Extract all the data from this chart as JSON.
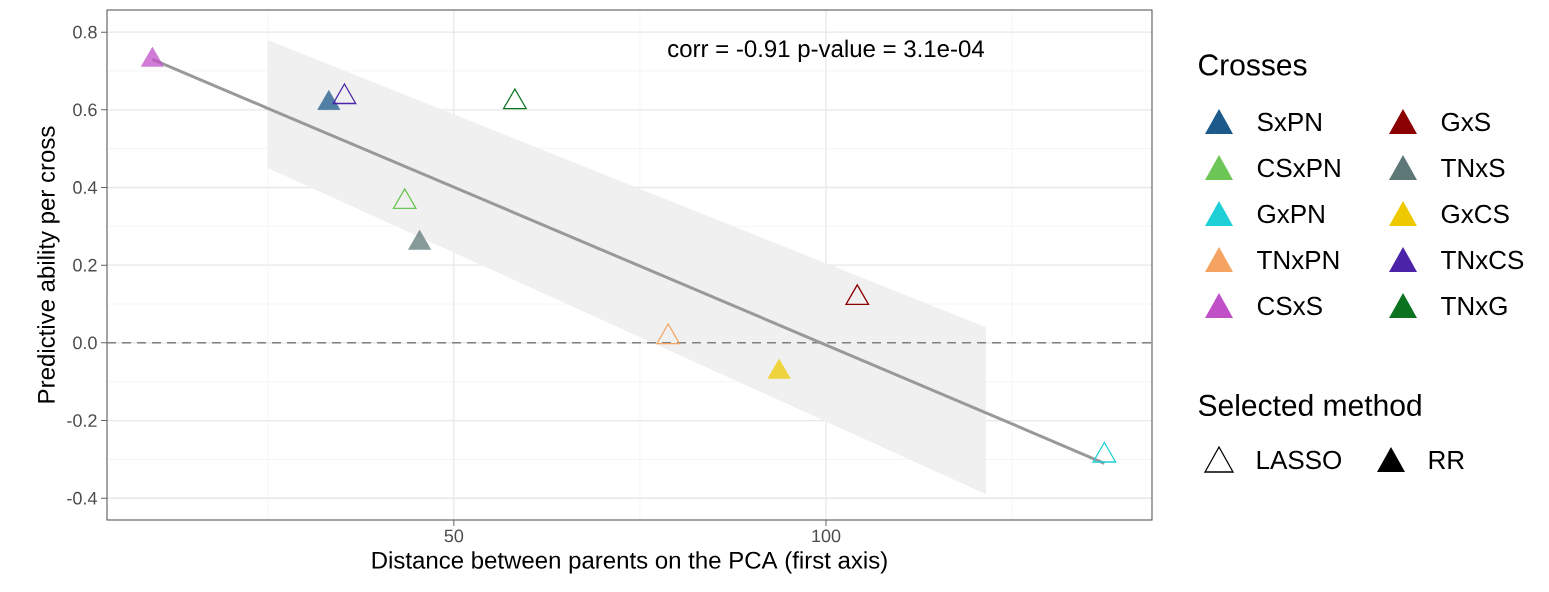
{
  "chart_data": {
    "type": "scatter",
    "xlabel": "Distance between parents on the PCA (first axis)",
    "ylabel": "Predictive ability per cross",
    "legend_title": "Crosses",
    "legend": "right",
    "grid": true,
    "xlim": [
      3.4,
      143.8
    ],
    "ylim": [
      -0.456,
      0.857
    ],
    "xticks": [
      50,
      100
    ],
    "yticks": [
      -0.4,
      -0.2,
      {
        "value": 0,
        "label": "0.0"
      },
      0.2,
      0.4,
      0.6,
      0.8
    ],
    "annotations": [
      "corr = -0.91 p-value =  3.1e-04",
      "Selected method",
      "LASSO",
      "RR"
    ],
    "ref_lines": [
      {
        "axis": "y",
        "value": 0,
        "color": "#808080",
        "line_style": "dashed"
      }
    ],
    "series": [
      {
        "type": "line",
        "color": "#999999",
        "marker": "none",
        "x": [
          9.5,
          25,
          121.5,
          137.4
        ],
        "values": [
          0.73,
          0.604,
          -0.18,
          -0.31
        ],
        "lower": [
          null,
          0.45,
          -0.39,
          null
        ],
        "upper": [
          null,
          0.78,
          0.04,
          null
        ]
      },
      {
        "name": "SxPN",
        "color": "#1b5a8a",
        "marker": "triangle",
        "x": [
          33.2
        ],
        "values": [
          0.617
        ]
      },
      {
        "name": "CSxPN",
        "color": "#6cc655",
        "marker": "triangle-open",
        "x": [
          43.4
        ],
        "values": [
          0.363
        ]
      },
      {
        "name": "GxPN",
        "color": "#1ecfd6",
        "marker": "triangle-open",
        "x": [
          137.4
        ],
        "values": [
          -0.29
        ]
      },
      {
        "name": "TNxPN",
        "color": "#f4a460",
        "marker": "triangle-open",
        "x": [
          78.8
        ],
        "values": [
          0.015
        ]
      },
      {
        "name": "CSxS",
        "color": "#c050c8",
        "marker": "triangle",
        "x": [
          9.5
        ],
        "values": [
          0.728
        ]
      },
      {
        "name": "GxS",
        "color": "#8b0000",
        "marker": "triangle-open",
        "x": [
          104.2
        ],
        "values": [
          0.116
        ]
      },
      {
        "name": "TNxS",
        "color": "#5e7878",
        "marker": "triangle",
        "x": [
          45.4
        ],
        "values": [
          0.257
        ]
      },
      {
        "name": "GxCS",
        "color": "#eec900",
        "marker": "triangle",
        "x": [
          93.7
        ],
        "values": [
          -0.075
        ]
      },
      {
        "name": "TNxCS",
        "color": "#4a23a8",
        "marker": "triangle-open",
        "x": [
          35.3
        ],
        "values": [
          0.633
        ]
      },
      {
        "name": "TNxG",
        "color": "#0b7320",
        "marker": "triangle-open",
        "x": [
          58.2
        ],
        "values": [
          0.62
        ]
      }
    ]
  }
}
